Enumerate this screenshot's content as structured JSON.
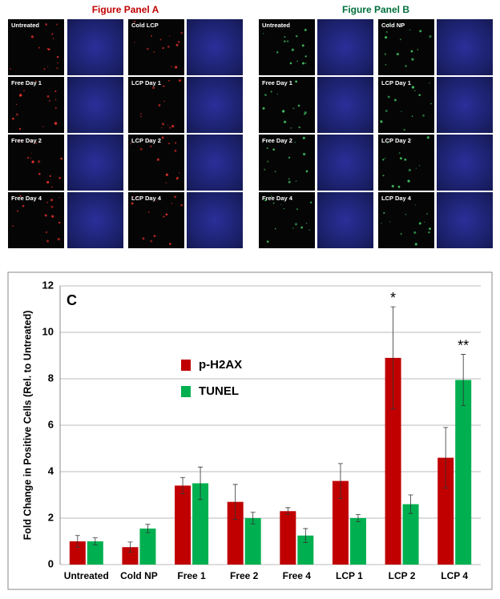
{
  "panels": [
    {
      "title": "Figure Panel A",
      "labels": [
        "Untreated",
        "Cold LCP",
        "Free Day 1",
        "LCP Day 1",
        "Free Day 2",
        "LCP Day 2",
        "Free Day 4",
        "LCP Day 4"
      ]
    },
    {
      "title": "Figure Panel B",
      "labels": [
        "Untreated",
        "Cold NP",
        "Free Day 1",
        "LCP Day 1",
        "Free Day 2",
        "LCP Day 2",
        "Free Day 4",
        "LCP Day 4"
      ]
    }
  ],
  "chart_data": {
    "type": "bar",
    "panel_label": "C",
    "y_label": "Fold Change in Positive Cells (Rel. to Untreated)",
    "categories": [
      "Untreated",
      "Cold NP",
      "Free 1",
      "Free 2",
      "Free 4",
      "LCP 1",
      "LCP 2",
      "LCP 4"
    ],
    "series": [
      {
        "name": "p-H2AX",
        "color": "#c00000",
        "values": [
          1.0,
          0.75,
          3.4,
          2.7,
          2.3,
          3.6,
          8.9,
          4.6
        ],
        "errors": [
          0.25,
          0.22,
          0.35,
          0.75,
          0.15,
          0.75,
          2.2,
          1.3
        ]
      },
      {
        "name": "TUNEL",
        "color": "#00b050",
        "values": [
          1.0,
          1.55,
          3.5,
          2.0,
          1.25,
          2.0,
          2.6,
          7.95
        ],
        "errors": [
          0.15,
          0.18,
          0.7,
          0.25,
          0.3,
          0.15,
          0.4,
          1.1
        ]
      }
    ],
    "annotations": [
      "*",
      "**"
    ],
    "ylim": [
      0,
      12
    ],
    "yticks": [
      0,
      2,
      4,
      6,
      8,
      10,
      12
    ],
    "grid": true
  }
}
